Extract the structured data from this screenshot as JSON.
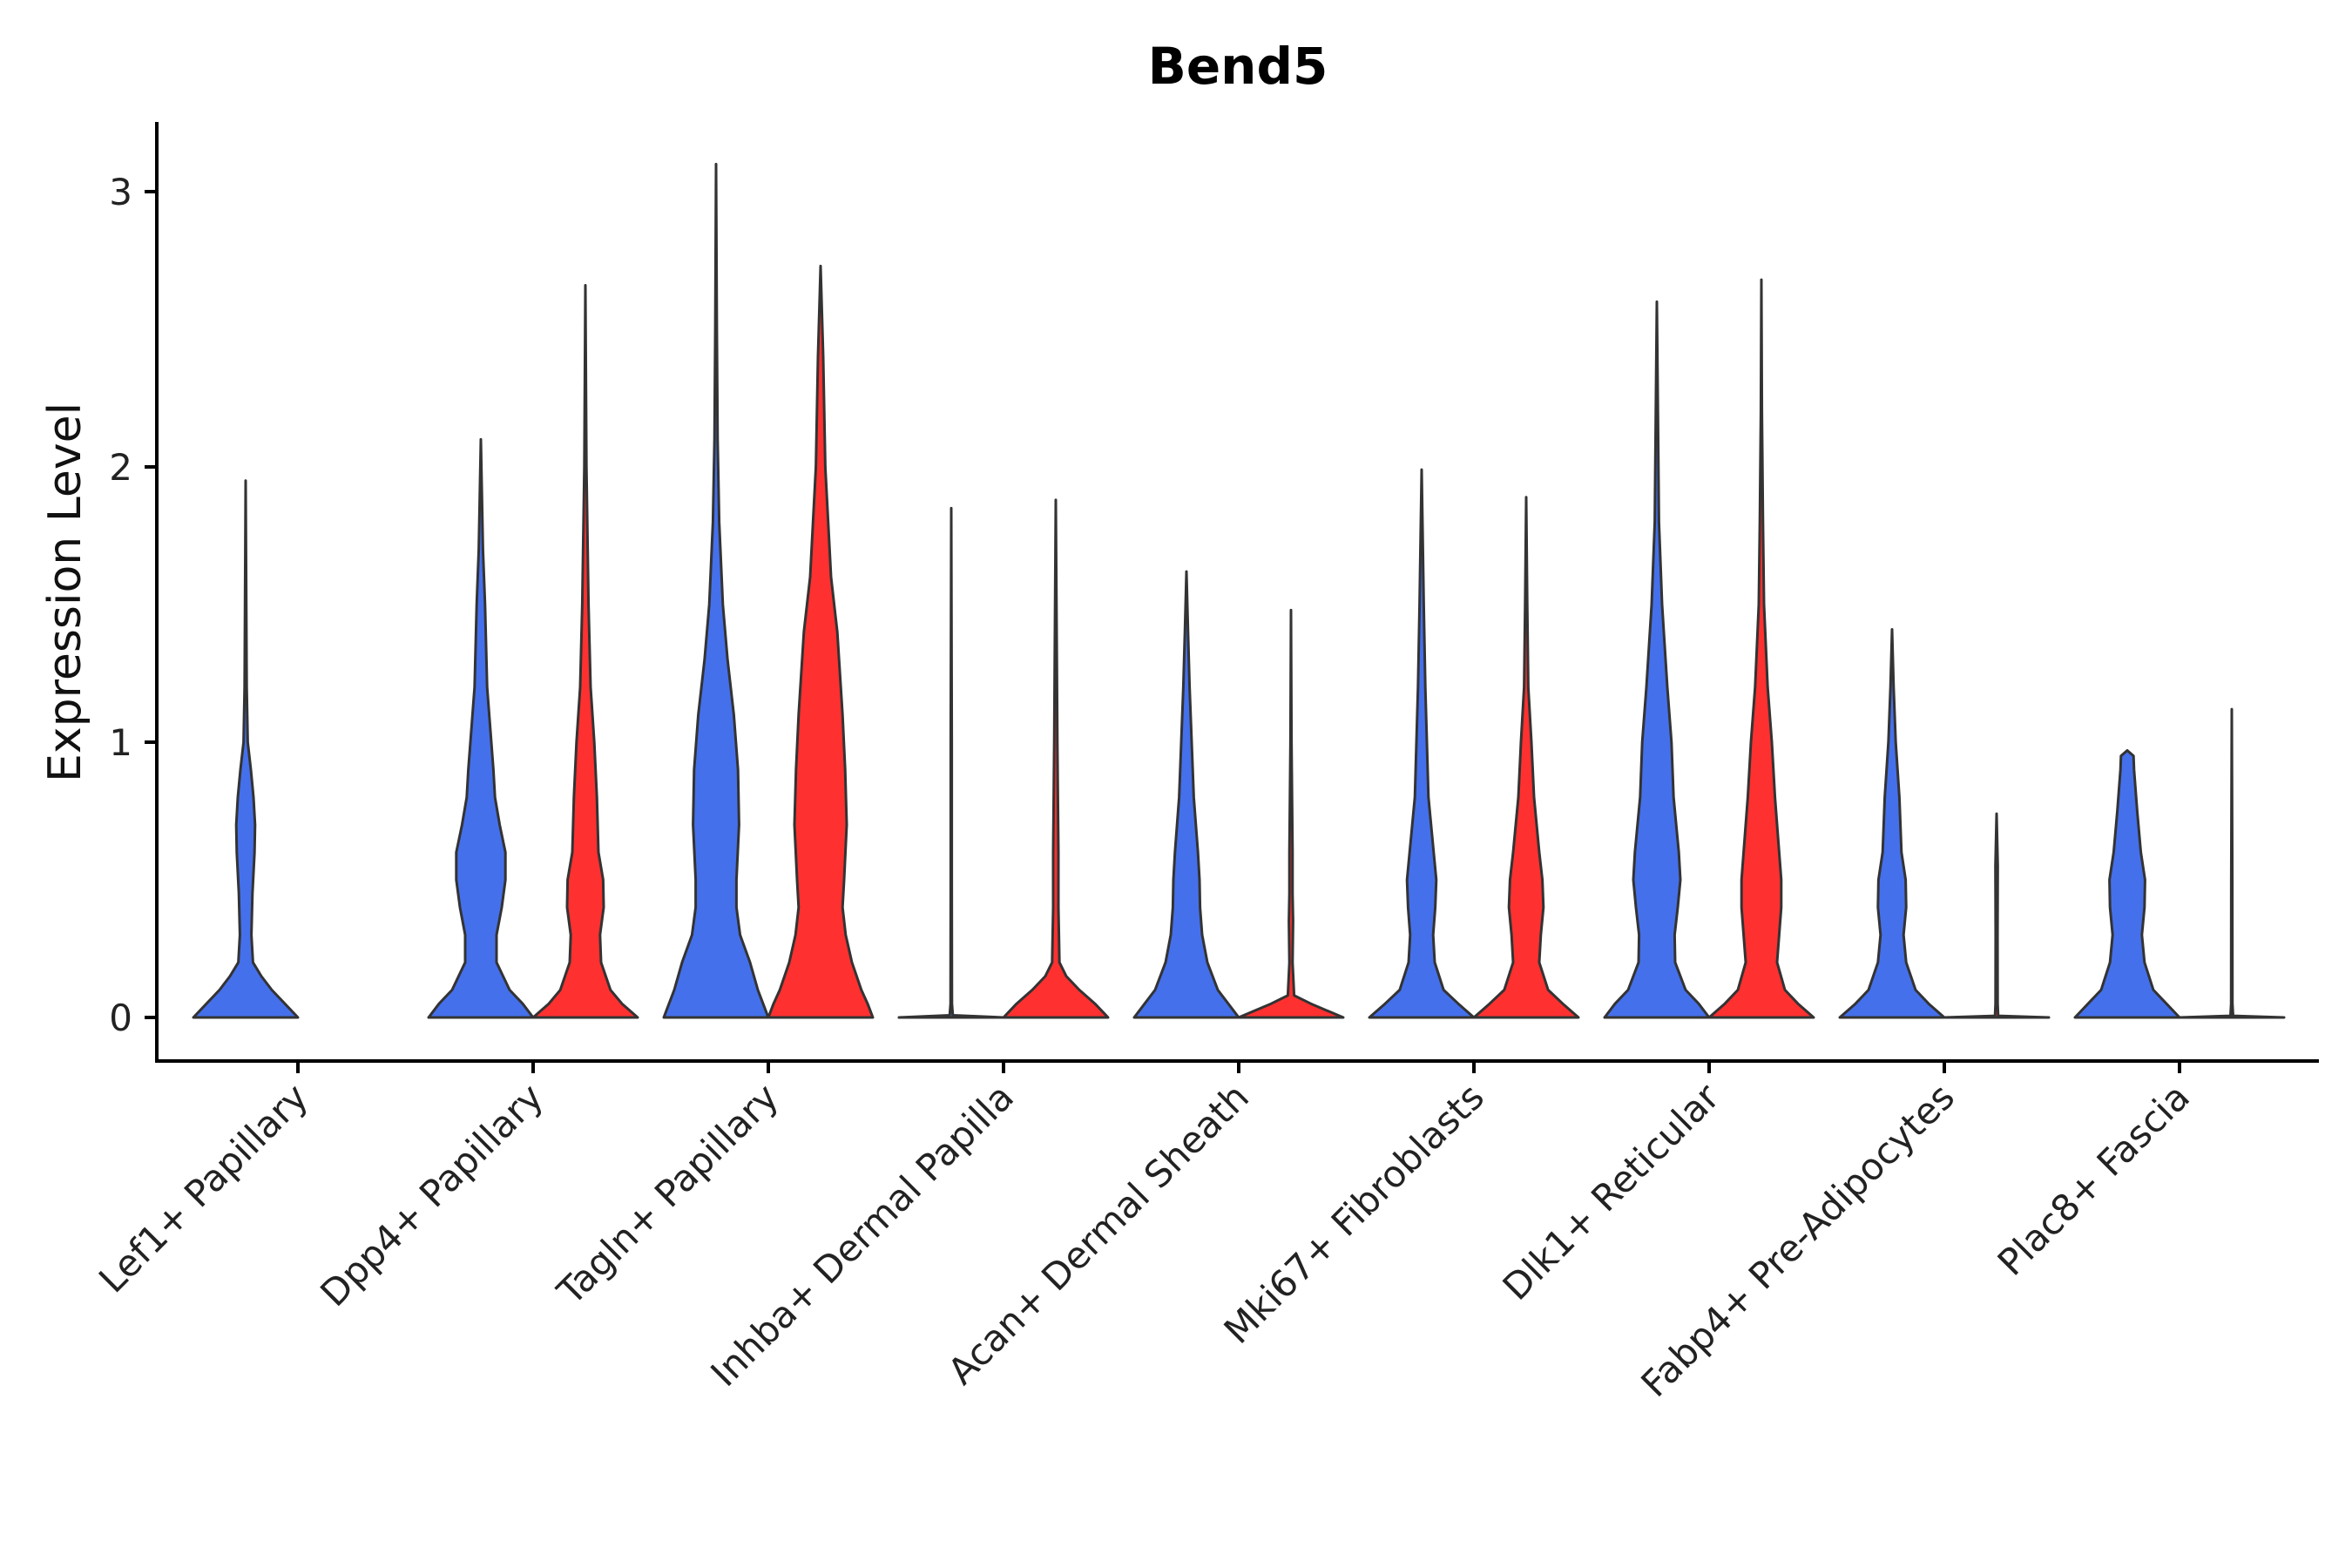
{
  "chart_data": {
    "type": "violin",
    "title": "Bend5",
    "xlabel": "",
    "ylabel": "Expression Level",
    "ylim": [
      -0.15,
      3.25
    ],
    "yticks": [
      "0",
      "1",
      "2",
      "3"
    ],
    "colors": {
      "group1": "#4570EC",
      "group2": "#FF3030",
      "outline": "#333333"
    },
    "categories": [
      "Lef1+ Papillary",
      "Dpp4+ Papillary",
      "Tagln+ Papillary",
      "Inhba+ Dermal Papilla",
      "Acan+ Dermal Sheath",
      "Mki67+ Fibroblasts",
      "Dlk1+ Reticular",
      "Fabp4+ Pre-Adipocytes",
      "Plac8+ Fascia"
    ],
    "series": [
      {
        "name": "group1",
        "color": "#4570EC",
        "violins": [
          {
            "max": 1.95,
            "profile": [
              [
                0,
                1.0
              ],
              [
                0.05,
                0.75
              ],
              [
                0.1,
                0.5
              ],
              [
                0.15,
                0.3
              ],
              [
                0.2,
                0.14
              ],
              [
                0.3,
                0.11
              ],
              [
                0.45,
                0.13
              ],
              [
                0.6,
                0.17
              ],
              [
                0.7,
                0.18
              ],
              [
                0.8,
                0.15
              ],
              [
                0.9,
                0.1
              ],
              [
                1.0,
                0.04
              ],
              [
                1.2,
                0.02
              ],
              [
                1.5,
                0.012
              ],
              [
                1.95,
                0.0
              ]
            ]
          },
          {
            "max": 2.1,
            "profile": [
              [
                0,
                1.0
              ],
              [
                0.05,
                0.8
              ],
              [
                0.1,
                0.55
              ],
              [
                0.2,
                0.3
              ],
              [
                0.3,
                0.3
              ],
              [
                0.4,
                0.4
              ],
              [
                0.5,
                0.47
              ],
              [
                0.6,
                0.47
              ],
              [
                0.7,
                0.36
              ],
              [
                0.8,
                0.27
              ],
              [
                0.9,
                0.24
              ],
              [
                1.0,
                0.2
              ],
              [
                1.2,
                0.12
              ],
              [
                1.5,
                0.08
              ],
              [
                1.7,
                0.04
              ],
              [
                1.9,
                0.02
              ],
              [
                2.1,
                0.0
              ]
            ]
          },
          {
            "max": 3.1,
            "profile": [
              [
                0,
                1.0
              ],
              [
                0.05,
                0.9
              ],
              [
                0.1,
                0.8
              ],
              [
                0.2,
                0.65
              ],
              [
                0.3,
                0.46
              ],
              [
                0.4,
                0.39
              ],
              [
                0.5,
                0.39
              ],
              [
                0.7,
                0.44
              ],
              [
                0.9,
                0.42
              ],
              [
                1.1,
                0.34
              ],
              [
                1.3,
                0.22
              ],
              [
                1.5,
                0.13
              ],
              [
                1.8,
                0.06
              ],
              [
                2.1,
                0.03
              ],
              [
                2.5,
                0.015
              ],
              [
                3.1,
                0.0
              ]
            ]
          },
          {
            "max": 1.85,
            "profile": [
              [
                0,
                1.0
              ],
              [
                0.008,
                0.03
              ],
              [
                0.05,
                0.013
              ],
              [
                0.5,
                0.01
              ],
              [
                1.0,
                0.01
              ],
              [
                1.85,
                0.0
              ]
            ]
          },
          {
            "max": 1.62,
            "profile": [
              [
                0,
                1.0
              ],
              [
                0.05,
                0.8
              ],
              [
                0.1,
                0.6
              ],
              [
                0.2,
                0.4
              ],
              [
                0.3,
                0.3
              ],
              [
                0.4,
                0.26
              ],
              [
                0.5,
                0.25
              ],
              [
                0.6,
                0.22
              ],
              [
                0.8,
                0.14
              ],
              [
                1.0,
                0.1
              ],
              [
                1.2,
                0.06
              ],
              [
                1.4,
                0.03
              ],
              [
                1.62,
                0.0
              ]
            ]
          },
          {
            "max": 1.99,
            "profile": [
              [
                0,
                1.0
              ],
              [
                0.05,
                0.7
              ],
              [
                0.1,
                0.42
              ],
              [
                0.2,
                0.25
              ],
              [
                0.3,
                0.22
              ],
              [
                0.4,
                0.26
              ],
              [
                0.5,
                0.28
              ],
              [
                0.6,
                0.23
              ],
              [
                0.8,
                0.13
              ],
              [
                1.0,
                0.1
              ],
              [
                1.2,
                0.07
              ],
              [
                1.5,
                0.04
              ],
              [
                1.99,
                0.0
              ]
            ]
          },
          {
            "max": 2.6,
            "profile": [
              [
                0,
                1.0
              ],
              [
                0.05,
                0.8
              ],
              [
                0.1,
                0.55
              ],
              [
                0.2,
                0.35
              ],
              [
                0.3,
                0.34
              ],
              [
                0.4,
                0.4
              ],
              [
                0.5,
                0.45
              ],
              [
                0.6,
                0.42
              ],
              [
                0.8,
                0.32
              ],
              [
                1.0,
                0.28
              ],
              [
                1.2,
                0.2
              ],
              [
                1.5,
                0.1
              ],
              [
                1.8,
                0.04
              ],
              [
                2.2,
                0.02
              ],
              [
                2.6,
                0.0
              ]
            ]
          },
          {
            "max": 1.41,
            "profile": [
              [
                0,
                1.0
              ],
              [
                0.05,
                0.7
              ],
              [
                0.1,
                0.45
              ],
              [
                0.2,
                0.27
              ],
              [
                0.3,
                0.22
              ],
              [
                0.4,
                0.27
              ],
              [
                0.5,
                0.26
              ],
              [
                0.6,
                0.18
              ],
              [
                0.8,
                0.14
              ],
              [
                1.0,
                0.07
              ],
              [
                1.2,
                0.03
              ],
              [
                1.41,
                0.0
              ]
            ]
          },
          {
            "max": 0.97,
            "profile": [
              [
                0,
                1.0
              ],
              [
                0.05,
                0.75
              ],
              [
                0.1,
                0.5
              ],
              [
                0.2,
                0.33
              ],
              [
                0.3,
                0.28
              ],
              [
                0.4,
                0.33
              ],
              [
                0.5,
                0.34
              ],
              [
                0.6,
                0.26
              ],
              [
                0.75,
                0.19
              ],
              [
                0.9,
                0.13
              ],
              [
                0.95,
                0.12
              ],
              [
                0.97,
                0.0
              ]
            ]
          }
        ]
      },
      {
        "name": "group2",
        "color": "#FF3030",
        "violins": [
          null,
          {
            "max": 2.66,
            "profile": [
              [
                0,
                1.0
              ],
              [
                0.05,
                0.7
              ],
              [
                0.1,
                0.48
              ],
              [
                0.2,
                0.3
              ],
              [
                0.3,
                0.28
              ],
              [
                0.4,
                0.35
              ],
              [
                0.5,
                0.34
              ],
              [
                0.6,
                0.25
              ],
              [
                0.8,
                0.22
              ],
              [
                1.0,
                0.17
              ],
              [
                1.2,
                0.1
              ],
              [
                1.5,
                0.06
              ],
              [
                2.0,
                0.02
              ],
              [
                2.66,
                0.0
              ]
            ]
          },
          {
            "max": 2.73,
            "profile": [
              [
                0,
                1.0
              ],
              [
                0.05,
                0.9
              ],
              [
                0.1,
                0.78
              ],
              [
                0.2,
                0.6
              ],
              [
                0.3,
                0.48
              ],
              [
                0.4,
                0.42
              ],
              [
                0.5,
                0.45
              ],
              [
                0.7,
                0.5
              ],
              [
                0.9,
                0.47
              ],
              [
                1.1,
                0.42
              ],
              [
                1.4,
                0.32
              ],
              [
                1.6,
                0.2
              ],
              [
                2.0,
                0.09
              ],
              [
                2.4,
                0.05
              ],
              [
                2.73,
                0.0
              ]
            ]
          },
          {
            "max": 1.88,
            "profile": [
              [
                0,
                1.0
              ],
              [
                0.05,
                0.75
              ],
              [
                0.1,
                0.45
              ],
              [
                0.15,
                0.2
              ],
              [
                0.2,
                0.07
              ],
              [
                0.4,
                0.05
              ],
              [
                0.6,
                0.05
              ],
              [
                0.8,
                0.04
              ],
              [
                1.0,
                0.03
              ],
              [
                1.3,
                0.02
              ],
              [
                1.88,
                0.0
              ]
            ]
          },
          {
            "max": 1.48,
            "profile": [
              [
                0,
                1.0
              ],
              [
                0.02,
                0.75
              ],
              [
                0.05,
                0.38
              ],
              [
                0.08,
                0.06
              ],
              [
                0.2,
                0.03
              ],
              [
                0.35,
                0.04
              ],
              [
                0.45,
                0.03
              ],
              [
                0.6,
                0.03
              ],
              [
                0.8,
                0.02
              ],
              [
                1.0,
                0.01
              ],
              [
                1.48,
                0.0
              ]
            ]
          },
          {
            "max": 1.89,
            "profile": [
              [
                0,
                1.0
              ],
              [
                0.05,
                0.7
              ],
              [
                0.1,
                0.42
              ],
              [
                0.2,
                0.25
              ],
              [
                0.3,
                0.28
              ],
              [
                0.4,
                0.33
              ],
              [
                0.5,
                0.31
              ],
              [
                0.6,
                0.25
              ],
              [
                0.8,
                0.15
              ],
              [
                1.0,
                0.1
              ],
              [
                1.2,
                0.04
              ],
              [
                1.5,
                0.02
              ],
              [
                1.89,
                0.0
              ]
            ]
          },
          {
            "max": 2.68,
            "profile": [
              [
                0,
                1.0
              ],
              [
                0.05,
                0.7
              ],
              [
                0.1,
                0.45
              ],
              [
                0.2,
                0.3
              ],
              [
                0.3,
                0.34
              ],
              [
                0.4,
                0.38
              ],
              [
                0.5,
                0.38
              ],
              [
                0.6,
                0.34
              ],
              [
                0.8,
                0.26
              ],
              [
                1.0,
                0.2
              ],
              [
                1.2,
                0.12
              ],
              [
                1.5,
                0.05
              ],
              [
                1.8,
                0.03
              ],
              [
                2.2,
                0.01
              ],
              [
                2.68,
                0.0
              ]
            ]
          },
          {
            "max": 0.74,
            "profile": [
              [
                0,
                1.0
              ],
              [
                0.006,
                0.03
              ],
              [
                0.05,
                0.02
              ],
              [
                0.3,
                0.018
              ],
              [
                0.55,
                0.022
              ],
              [
                0.74,
                0.0
              ]
            ]
          },
          {
            "max": 1.12,
            "profile": [
              [
                0,
                1.0
              ],
              [
                0.006,
                0.025
              ],
              [
                0.05,
                0.012
              ],
              [
                0.5,
                0.01
              ],
              [
                1.12,
                0.0
              ]
            ]
          }
        ]
      }
    ]
  }
}
